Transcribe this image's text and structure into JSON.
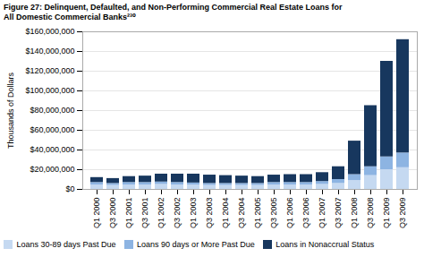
{
  "chart_data": {
    "type": "bar",
    "stacked": true,
    "title": "Figure 27: Delinquent, Defaulted, and Non-Performing Commercial Real Estate Loans for",
    "subtitle": "All Domestic Commercial Banks²³⁰",
    "ylabel": "Thousands of Dollars",
    "categories": [
      "Q1 2000",
      "Q3 2000",
      "Q1 2001",
      "Q3 2001",
      "Q1 2002",
      "Q3 2002",
      "Q1 2003",
      "Q3 2003",
      "Q1 2004",
      "Q3 2004",
      "Q1 2005",
      "Q3 2005",
      "Q1 2006",
      "Q3 2006",
      "Q1 2007",
      "Q3 2007",
      "Q1 2008",
      "Q3 2008",
      "Q1 2009",
      "Q3 2009"
    ],
    "series": [
      {
        "name": "Loans 30-89 days Past Due",
        "color": "#c5d9f1",
        "values": [
          4500000,
          4000000,
          4500000,
          4500000,
          5000000,
          4500000,
          4500000,
          4000000,
          4000000,
          4000000,
          4000000,
          4500000,
          4500000,
          4500000,
          5000000,
          6000000,
          9000000,
          14000000,
          20000000,
          22000000
        ]
      },
      {
        "name": "Loans 90 days or More Past Due",
        "color": "#8db4e2",
        "values": [
          2500000,
          2000000,
          2500000,
          2500000,
          2500000,
          2500000,
          2000000,
          2000000,
          2000000,
          2000000,
          2000000,
          2500000,
          2500000,
          2500000,
          3000000,
          4000000,
          6000000,
          9000000,
          13000000,
          15000000
        ]
      },
      {
        "name": "Loans in Nonaccrual Status",
        "color": "#17375e",
        "values": [
          5000000,
          5000000,
          6000000,
          6500000,
          8000000,
          8500000,
          9000000,
          8500000,
          8000000,
          7500000,
          7000000,
          7500000,
          8000000,
          8000000,
          9000000,
          13000000,
          34000000,
          62000000,
          97000000,
          115000000
        ]
      }
    ],
    "ylim": [
      0,
      160000000
    ],
    "yticks": [
      {
        "value": 0,
        "label": "$0"
      },
      {
        "value": 20000000,
        "label": "$20,000,000"
      },
      {
        "value": 40000000,
        "label": "$40,000,000"
      },
      {
        "value": 60000000,
        "label": "$60,000,000"
      },
      {
        "value": 80000000,
        "label": "$80,000,000"
      },
      {
        "value": 100000000,
        "label": "$100,000,000"
      },
      {
        "value": 120000000,
        "label": "$120,000,000"
      },
      {
        "value": 140000000,
        "label": "$140,000,000"
      },
      {
        "value": 160000000,
        "label": "$160,000,000"
      }
    ],
    "grid": true,
    "legend": "bottom"
  }
}
